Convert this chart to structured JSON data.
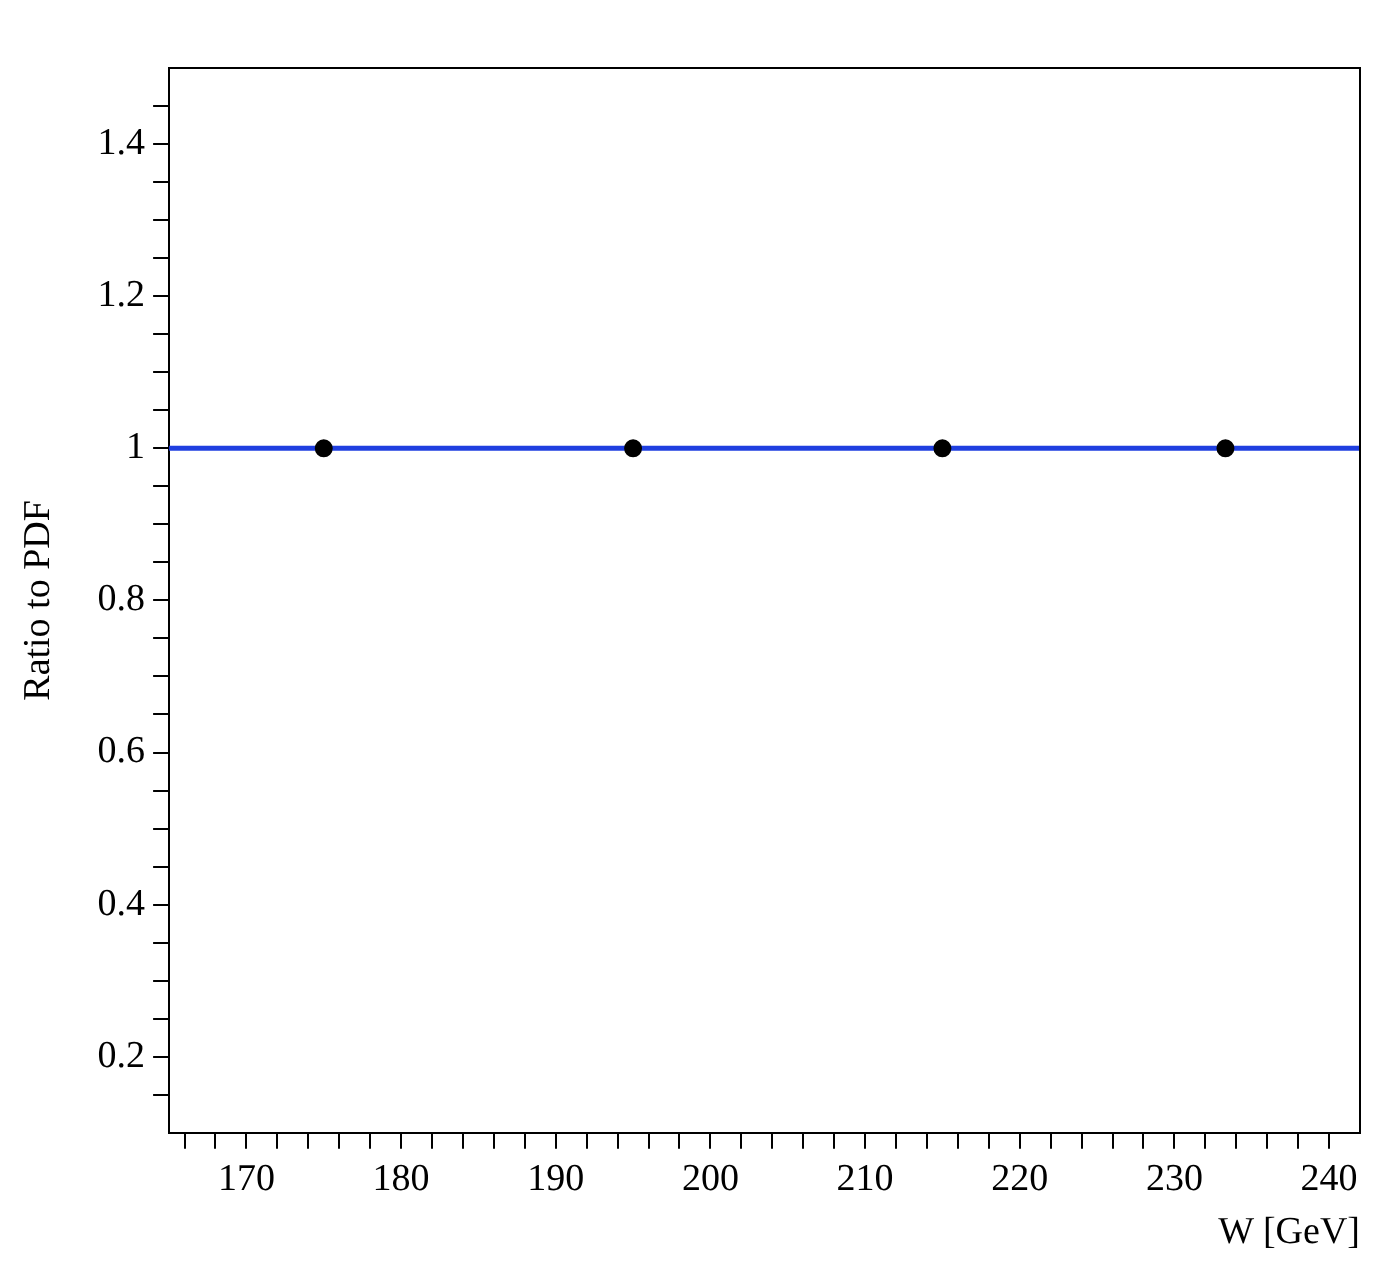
{
  "chart_data": {
    "type": "scatter",
    "xlabel": "W [GeV]",
    "ylabel": "Ratio to PDF",
    "x": [
      175,
      195,
      215,
      233.3
    ],
    "series": [
      {
        "color": "#000000",
        "values": [
          1,
          1,
          1,
          1
        ]
      }
    ],
    "marker": "circle",
    "grid": false,
    "legend": false,
    "xlim": [
      165,
      242
    ],
    "ylim": [
      0.1,
      1.5
    ],
    "xticks": [
      {
        "value": 166,
        "label": null
      },
      {
        "value": 168,
        "label": null
      },
      170,
      {
        "value": 172,
        "label": null
      },
      {
        "value": 174,
        "label": null
      },
      {
        "value": 176,
        "label": null
      },
      {
        "value": 178,
        "label": null
      },
      180,
      {
        "value": 182,
        "label": null
      },
      {
        "value": 184,
        "label": null
      },
      {
        "value": 186,
        "label": null
      },
      {
        "value": 188,
        "label": null
      },
      190,
      {
        "value": 192,
        "label": null
      },
      {
        "value": 194,
        "label": null
      },
      {
        "value": 196,
        "label": null
      },
      {
        "value": 198,
        "label": null
      },
      200,
      {
        "value": 202,
        "label": null
      },
      {
        "value": 204,
        "label": null
      },
      {
        "value": 206,
        "label": null
      },
      {
        "value": 208,
        "label": null
      },
      210,
      {
        "value": 212,
        "label": null
      },
      {
        "value": 214,
        "label": null
      },
      {
        "value": 216,
        "label": null
      },
      {
        "value": 218,
        "label": null
      },
      220,
      {
        "value": 222,
        "label": null
      },
      {
        "value": 224,
        "label": null
      },
      {
        "value": 226,
        "label": null
      },
      {
        "value": 228,
        "label": null
      },
      230,
      {
        "value": 232,
        "label": null
      },
      {
        "value": 234,
        "label": null
      },
      {
        "value": 236,
        "label": null
      },
      {
        "value": 238,
        "label": null
      },
      240
    ],
    "yticks": [
      {
        "value": 0.15,
        "label": null
      },
      0.2,
      {
        "value": 0.25,
        "label": null
      },
      {
        "value": 0.3,
        "label": null
      },
      {
        "value": 0.35,
        "label": null
      },
      0.4,
      {
        "value": 0.45,
        "label": null
      },
      {
        "value": 0.5,
        "label": null
      },
      {
        "value": 0.55,
        "label": null
      },
      0.6,
      {
        "value": 0.65,
        "label": null
      },
      {
        "value": 0.7,
        "label": null
      },
      {
        "value": 0.75,
        "label": null
      },
      0.8,
      {
        "value": 0.85,
        "label": null
      },
      {
        "value": 0.9,
        "label": null
      },
      {
        "value": 0.95,
        "label": null
      },
      1,
      {
        "value": 1.05,
        "label": null
      },
      {
        "value": 1.1,
        "label": null
      },
      {
        "value": 1.15,
        "label": null
      },
      1.2,
      {
        "value": 1.25,
        "label": null
      },
      {
        "value": 1.3,
        "label": null
      },
      {
        "value": 1.35,
        "label": null
      },
      1.4,
      {
        "value": 1.45,
        "label": null
      }
    ],
    "ref_lines": [
      {
        "axis": "y",
        "value": 1,
        "color": "#1f3fe0",
        "line_style": "solid"
      }
    ]
  }
}
